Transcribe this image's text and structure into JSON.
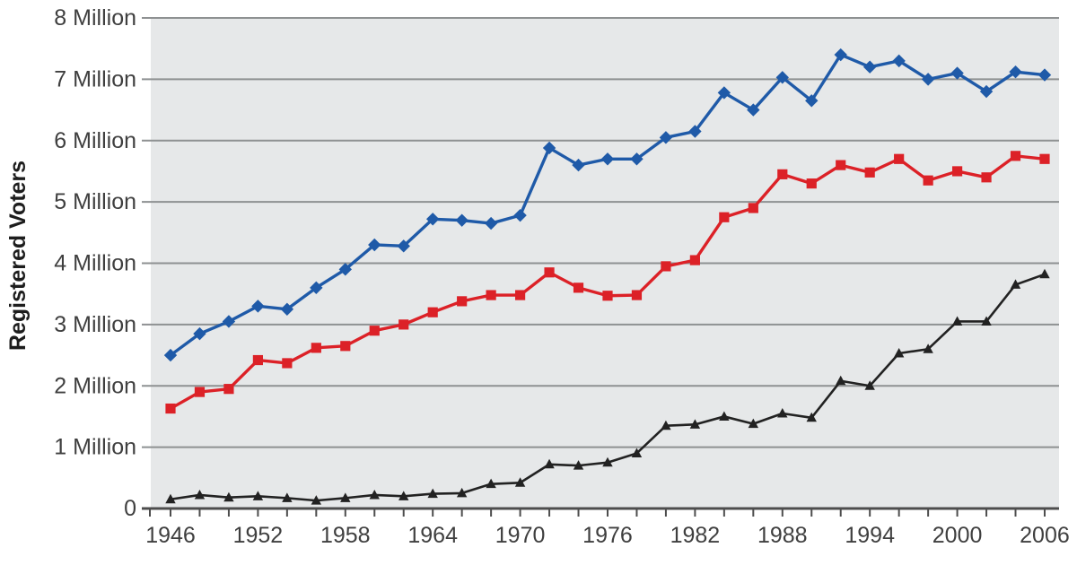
{
  "page": {
    "background_color": "#ffffff"
  },
  "chart_data": {
    "type": "line",
    "title": "",
    "xlabel": "",
    "ylabel": "Registered Voters",
    "values_unit": "millions",
    "ylim_millions": [
      0,
      8
    ],
    "grid": true,
    "legend_position": "none",
    "plot_background_color": "#e6e8e9",
    "gridline_color": "#8e9192",
    "axis_color": "#4d4d4d",
    "tick_label_color": "#3f3f3f",
    "y_tick_values_millions": [
      0,
      1,
      2,
      3,
      4,
      5,
      6,
      7,
      8
    ],
    "y_tick_labels": [
      "0",
      "1 Million",
      "2 Million",
      "3 Million",
      "4 Million",
      "5 Million",
      "6 Million",
      "7 Million",
      "8 Million"
    ],
    "x_minor_tick_step_years": 2,
    "x_label_years": [
      "1946",
      "1952",
      "1958",
      "1964",
      "1970",
      "1976",
      "1982",
      "1988",
      "1994",
      "2000",
      "2006"
    ],
    "x": [
      1946,
      1948,
      1950,
      1952,
      1954,
      1956,
      1958,
      1960,
      1962,
      1964,
      1966,
      1968,
      1970,
      1972,
      1974,
      1976,
      1978,
      1980,
      1982,
      1984,
      1986,
      1988,
      1990,
      1992,
      1994,
      1996,
      1998,
      2000,
      2002,
      2004,
      2006
    ],
    "series": [
      {
        "name": "blue-series",
        "color": "#1f5aa8",
        "marker": "diamond",
        "values_millions": [
          2.5,
          2.85,
          3.05,
          3.3,
          3.25,
          3.6,
          3.9,
          4.3,
          4.28,
          4.72,
          4.7,
          4.65,
          4.78,
          5.88,
          5.6,
          5.7,
          5.7,
          6.05,
          6.15,
          6.78,
          6.5,
          7.03,
          6.65,
          7.4,
          7.2,
          7.3,
          7.0,
          7.1,
          6.8,
          7.12,
          7.07
        ]
      },
      {
        "name": "red-series",
        "color": "#dc2127",
        "marker": "square",
        "values_millions": [
          1.63,
          1.9,
          1.95,
          2.42,
          2.37,
          2.62,
          2.65,
          2.9,
          3.0,
          3.2,
          3.38,
          3.48,
          3.48,
          3.85,
          3.6,
          3.47,
          3.48,
          3.95,
          4.05,
          4.75,
          4.9,
          5.45,
          5.3,
          5.6,
          5.48,
          5.7,
          5.35,
          5.5,
          5.4,
          5.75,
          5.7
        ]
      },
      {
        "name": "black-series",
        "color": "#222222",
        "marker": "triangle",
        "values_millions": [
          0.15,
          0.22,
          0.18,
          0.2,
          0.17,
          0.13,
          0.17,
          0.22,
          0.2,
          0.24,
          0.25,
          0.4,
          0.42,
          0.72,
          0.7,
          0.75,
          0.9,
          1.35,
          1.37,
          1.5,
          1.38,
          1.55,
          1.48,
          2.08,
          2.0,
          2.53,
          2.6,
          3.05,
          3.05,
          3.65,
          3.82
        ]
      }
    ]
  }
}
